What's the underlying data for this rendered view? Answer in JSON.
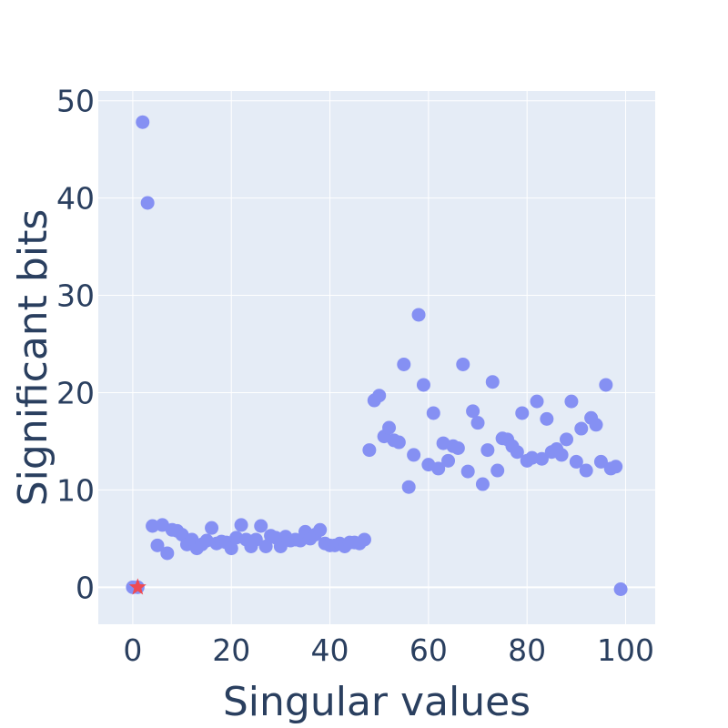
{
  "chart_data": {
    "type": "scatter",
    "xlabel": "Singular values",
    "ylabel": "Significant bits",
    "xlim": [
      -7,
      106
    ],
    "ylim": [
      -3.8,
      51
    ],
    "x_ticks": [
      0,
      20,
      40,
      60,
      80,
      100
    ],
    "y_ticks": [
      0,
      10,
      20,
      30,
      40,
      50
    ],
    "grid": true,
    "legend": "none",
    "colors": {
      "plot_bg": "#e5ecf6",
      "grid": "#ffffff",
      "marker": "#8590f3",
      "highlight": "#ef4b52",
      "text": "#2a3f5f"
    },
    "series": [
      {
        "marker": "circle",
        "x": [
          0,
          1,
          2,
          3,
          4,
          5,
          6,
          7,
          8,
          9,
          10,
          11,
          12,
          13,
          14,
          15,
          16,
          17,
          18,
          19,
          20,
          21,
          22,
          23,
          24,
          25,
          26,
          27,
          28,
          29,
          30,
          31,
          32,
          33,
          34,
          35,
          36,
          37,
          38,
          39,
          40,
          41,
          42,
          43,
          44,
          45,
          46,
          47,
          48,
          49,
          50,
          51,
          52,
          53,
          54,
          55,
          56,
          57,
          58,
          59,
          60,
          61,
          62,
          63,
          64,
          65,
          66,
          67,
          68,
          69,
          70,
          71,
          72,
          73,
          74,
          75,
          76,
          77,
          78,
          79,
          80,
          81,
          82,
          83,
          84,
          85,
          86,
          87,
          88,
          89,
          90,
          91,
          92,
          93,
          94,
          95,
          96,
          97,
          98,
          99
        ],
        "y": [
          0,
          0,
          47.8,
          39.5,
          6.3,
          4.3,
          6.4,
          3.5,
          5.9,
          5.8,
          5.4,
          4.4,
          4.9,
          4.0,
          4.4,
          4.8,
          6.1,
          4.5,
          4.7,
          4.6,
          4.0,
          5.1,
          6.4,
          4.9,
          4.2,
          4.9,
          6.3,
          4.2,
          5.3,
          5.1,
          4.2,
          5.2,
          4.8,
          4.9,
          4.8,
          5.7,
          5.0,
          5.4,
          5.9,
          4.5,
          4.3,
          4.3,
          4.5,
          4.2,
          4.6,
          4.6,
          4.5,
          4.9,
          14.1,
          19.2,
          19.7,
          15.5,
          16.4,
          15.1,
          14.9,
          22.9,
          10.3,
          13.6,
          28.0,
          20.8,
          12.6,
          17.9,
          12.2,
          14.8,
          13.0,
          14.5,
          14.3,
          22.9,
          11.9,
          18.1,
          16.9,
          10.6,
          14.1,
          21.1,
          12.0,
          15.3,
          15.2,
          14.5,
          13.9,
          17.9,
          13.0,
          13.3,
          19.1,
          13.2,
          17.3,
          13.9,
          14.2,
          13.6,
          15.2,
          19.1,
          12.9,
          16.3,
          12.0,
          17.4,
          16.7,
          12.9,
          20.8,
          12.2,
          12.4,
          -0.2
        ]
      },
      {
        "marker": "star",
        "x": [
          1
        ],
        "y": [
          0
        ]
      }
    ]
  }
}
